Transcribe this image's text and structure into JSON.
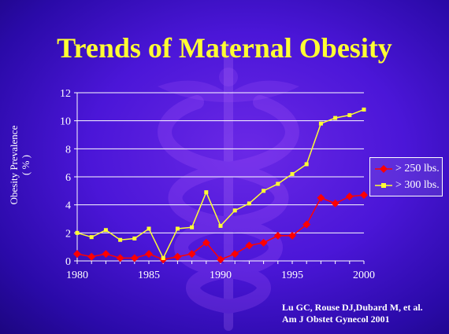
{
  "slide": {
    "title": "Trends of Maternal Obesity",
    "citation_line1": "Lu GC, Rouse DJ,Dubard M, et al.",
    "citation_line2": "Am J Obstet Gynecol 2001"
  },
  "colors": {
    "background": "#4b16d8",
    "title": "#ffff33",
    "series_250": "#ff0000",
    "series_300": "#ffff33",
    "grid": "#ffffff"
  },
  "chart_data": {
    "type": "line",
    "title": "Trends of Maternal Obesity",
    "xlabel": "",
    "ylabel_line1": "Obesity Prevalence",
    "ylabel_line2": "( % )",
    "xlim": [
      1980,
      2000
    ],
    "ylim": [
      0,
      12
    ],
    "x_ticks": [
      1980,
      1985,
      1990,
      1995,
      2000
    ],
    "y_ticks": [
      0,
      2,
      4,
      6,
      8,
      10,
      12
    ],
    "grid": "horizontal",
    "legend_position": "right",
    "x": [
      1980,
      1981,
      1982,
      1983,
      1984,
      1985,
      1986,
      1987,
      1988,
      1989,
      1990,
      1991,
      1992,
      1993,
      1994,
      1995,
      1996,
      1997,
      1998,
      1999,
      2000
    ],
    "series": [
      {
        "name": "> 250 lbs.",
        "marker": "diamond",
        "color": "#ff0000",
        "values": [
          0.5,
          0.3,
          0.5,
          0.2,
          0.2,
          0.5,
          0.1,
          0.3,
          0.5,
          1.3,
          0.1,
          0.5,
          1.1,
          1.3,
          1.8,
          1.8,
          2.6,
          4.5,
          4.1,
          4.6,
          4.7
        ]
      },
      {
        "name": "> 300 lbs.",
        "marker": "square",
        "color": "#ffff33",
        "values": [
          2.0,
          1.7,
          2.2,
          1.5,
          1.6,
          2.3,
          0.2,
          2.3,
          2.4,
          4.9,
          2.5,
          3.6,
          4.1,
          5.0,
          5.5,
          6.2,
          6.9,
          9.8,
          10.2,
          10.4,
          10.8
        ]
      }
    ]
  }
}
